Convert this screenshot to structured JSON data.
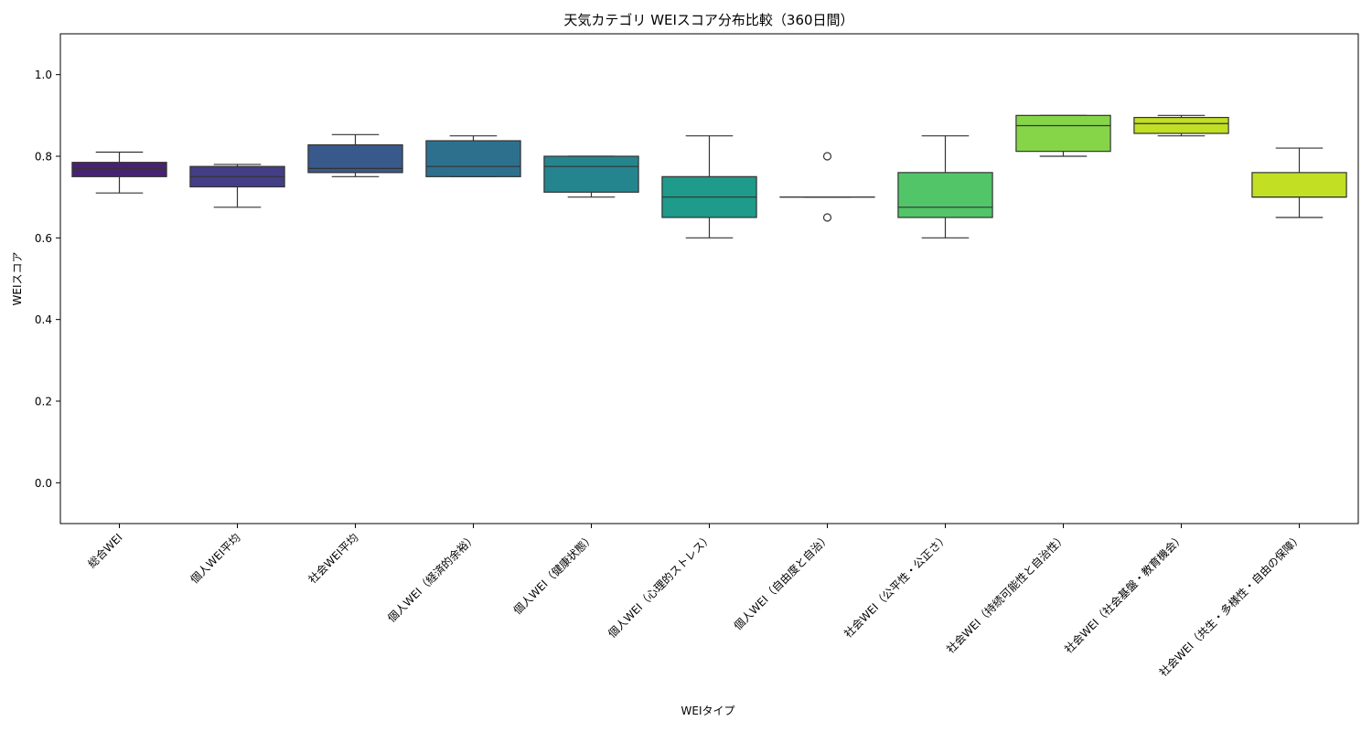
{
  "chart_data": {
    "type": "box",
    "title": "天気カテゴリ WEIスコア分布比較（360日間）",
    "xlabel": "WEIタイプ",
    "ylabel": "WEIスコア",
    "ylim": [
      -0.1,
      1.1
    ],
    "yticks": [
      0.0,
      0.2,
      0.4,
      0.6,
      0.8,
      1.0
    ],
    "ytick_labels": [
      "0.0",
      "0.2",
      "0.4",
      "0.6",
      "0.8",
      "1.0"
    ],
    "grid": false,
    "legend": "none",
    "categories": [
      "総合WEI",
      "個人WEI平均",
      "社会WEI平均",
      "個人WEI（経済的余裕）",
      "個人WEI（健康状態）",
      "個人WEI（心理的ストレス）",
      "個人WEI（自由度と自治）",
      "社会WEI（公平性・公正さ）",
      "社会WEI（持続可能性と自治性）",
      "社会WEI（社会基盤・教育機会）",
      "社会WEI（共生・多様性・自由の保障）"
    ],
    "boxes": [
      {
        "whisker_low": 0.71,
        "q1": 0.75,
        "median": 0.77,
        "q3": 0.785,
        "whisker_high": 0.81,
        "outliers": [],
        "color": "#482173"
      },
      {
        "whisker_low": 0.675,
        "q1": 0.725,
        "median": 0.75,
        "q3": 0.775,
        "whisker_high": 0.78,
        "outliers": [],
        "color": "#433e85"
      },
      {
        "whisker_low": 0.75,
        "q1": 0.76,
        "median": 0.77,
        "q3": 0.828,
        "whisker_high": 0.853,
        "outliers": [],
        "color": "#38598c"
      },
      {
        "whisker_low": 0.75,
        "q1": 0.75,
        "median": 0.775,
        "q3": 0.838,
        "whisker_high": 0.85,
        "outliers": [],
        "color": "#2d708e"
      },
      {
        "whisker_low": 0.7,
        "q1": 0.712,
        "median": 0.775,
        "q3": 0.8,
        "whisker_high": 0.8,
        "outliers": [],
        "color": "#25858e"
      },
      {
        "whisker_low": 0.6,
        "q1": 0.65,
        "median": 0.7,
        "q3": 0.75,
        "whisker_high": 0.85,
        "outliers": [],
        "color": "#1e9b8a"
      },
      {
        "whisker_low": 0.7,
        "q1": 0.7,
        "median": 0.7,
        "q3": 0.7,
        "whisker_high": 0.7,
        "outliers": [
          0.8,
          0.65
        ],
        "color": "#2ab07f"
      },
      {
        "whisker_low": 0.6,
        "q1": 0.65,
        "median": 0.675,
        "q3": 0.76,
        "whisker_high": 0.85,
        "outliers": [],
        "color": "#52c569"
      },
      {
        "whisker_low": 0.8,
        "q1": 0.812,
        "median": 0.875,
        "q3": 0.9,
        "whisker_high": 0.9,
        "outliers": [],
        "color": "#86d549"
      },
      {
        "whisker_low": 0.85,
        "q1": 0.856,
        "median": 0.88,
        "q3": 0.895,
        "whisker_high": 0.9,
        "outliers": [],
        "color": "#c2df23"
      },
      {
        "whisker_low": 0.65,
        "q1": 0.7,
        "median": 0.7,
        "q3": 0.76,
        "whisker_high": 0.82,
        "outliers": [],
        "color": "#c2df23"
      }
    ]
  }
}
